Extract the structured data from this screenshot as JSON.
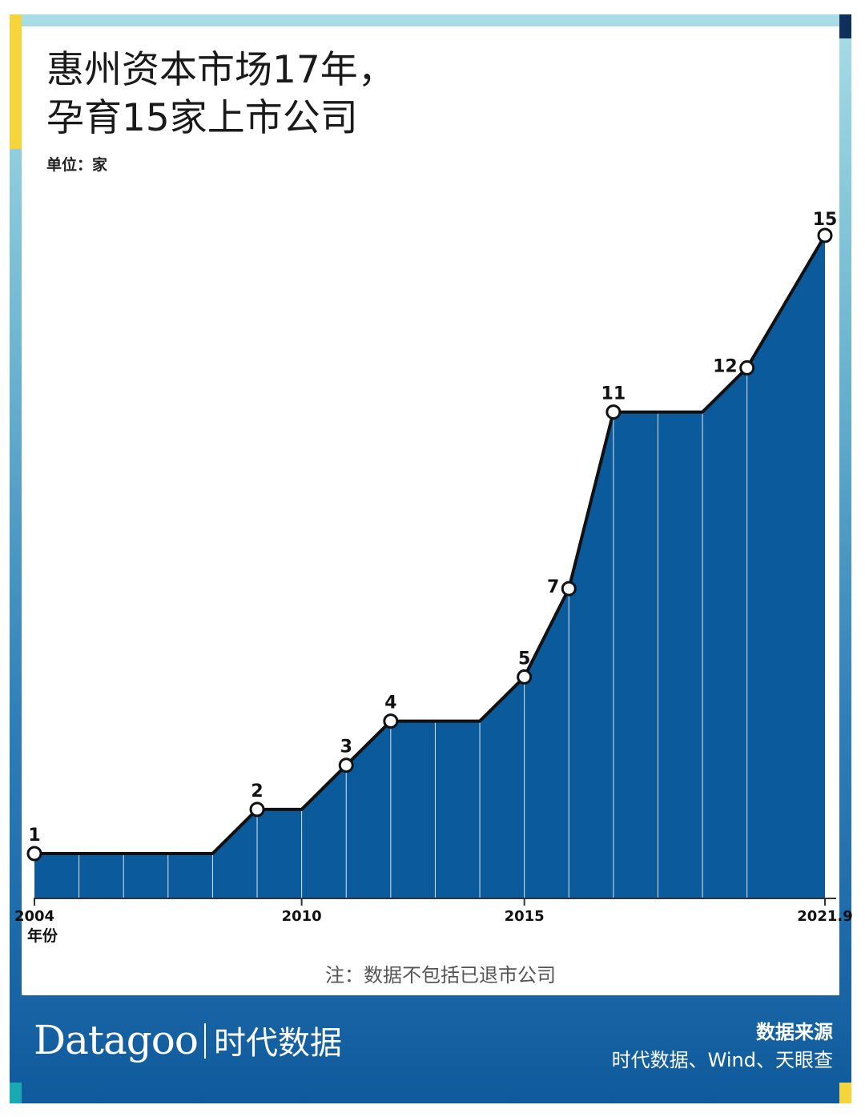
{
  "header": {
    "title_line1": "惠州资本市场17年，",
    "title_line2": "孕育15家上市公司",
    "unit": "单位：家"
  },
  "footer": {
    "note": "注：数据不包括已退市公司",
    "brand_latin": "Datagoo",
    "brand_cn": "时代数据",
    "source_title": "数据来源",
    "source_text": "时代数据、Wind、天眼查"
  },
  "colors": {
    "area_fill": "#0b5a9c",
    "line": "#111111",
    "accent_yellow": "#f5d53b",
    "accent_navy": "#0f2f5c",
    "accent_teal": "#19a9b0"
  },
  "chart_data": {
    "type": "area",
    "xlabel": "年份",
    "x": [
      2004,
      2005,
      2006,
      2007,
      2008,
      2009,
      2010,
      2011,
      2012,
      2013,
      2014,
      2015,
      2016,
      2017,
      2018,
      2019,
      2020,
      2021.75
    ],
    "values": [
      1,
      1,
      1,
      1,
      1,
      2,
      2,
      3,
      4,
      4,
      4,
      5,
      7,
      11,
      11,
      11,
      12,
      15
    ],
    "markers": [
      {
        "x": 2004,
        "value": 1,
        "label": "1"
      },
      {
        "x": 2009,
        "value": 2,
        "label": "2"
      },
      {
        "x": 2011,
        "value": 3,
        "label": "3"
      },
      {
        "x": 2012,
        "value": 4,
        "label": "4"
      },
      {
        "x": 2015,
        "value": 5,
        "label": "5"
      },
      {
        "x": 2016,
        "value": 7,
        "label": "7"
      },
      {
        "x": 2017,
        "value": 11,
        "label": "11"
      },
      {
        "x": 2020,
        "value": 12,
        "label": "12"
      },
      {
        "x": 2021.75,
        "value": 15,
        "label": "15"
      }
    ],
    "x_ticks": [
      {
        "x": 2004,
        "label": "2004"
      },
      {
        "x": 2010,
        "label": "2010"
      },
      {
        "x": 2015,
        "label": "2015"
      },
      {
        "x": 2021.75,
        "label": "2021.9"
      }
    ],
    "ylim": [
      0,
      15
    ],
    "grid": false,
    "legend": "none"
  }
}
